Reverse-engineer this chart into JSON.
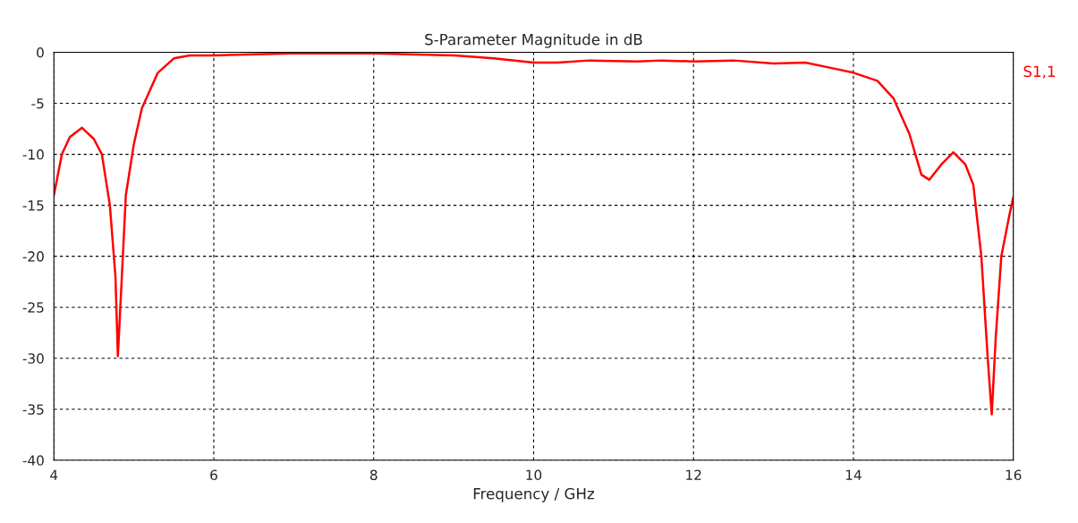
{
  "chart_data": {
    "type": "line",
    "title": "S-Parameter Magnitude in dB",
    "xlabel": "Frequency / GHz",
    "xlim": [
      4,
      16
    ],
    "xticks": [
      4,
      6,
      8,
      10,
      12,
      14,
      16
    ],
    "ylim": [
      -40,
      0
    ],
    "yticks": [
      -40,
      -35,
      -30,
      -25,
      -20,
      -15,
      -10,
      -5,
      0
    ],
    "grid": true,
    "legend": "right",
    "line_style": "solid",
    "series": [
      {
        "name": "S1,1",
        "color": "#ff0000",
        "x": [
          4.0,
          4.1,
          4.2,
          4.35,
          4.5,
          4.6,
          4.7,
          4.77,
          4.8,
          4.85,
          4.9,
          5.0,
          5.1,
          5.3,
          5.5,
          5.7,
          6.0,
          6.5,
          7.0,
          8.0,
          9.0,
          9.5,
          10.0,
          10.3,
          10.7,
          11.3,
          11.6,
          12.0,
          12.5,
          13.0,
          13.4,
          13.7,
          14.0,
          14.3,
          14.5,
          14.7,
          14.85,
          14.95,
          15.1,
          15.25,
          15.4,
          15.5,
          15.6,
          15.68,
          15.73,
          15.78,
          15.85,
          15.95,
          16.0
        ],
        "values": [
          -14,
          -10,
          -8.3,
          -7.4,
          -8.5,
          -10,
          -15,
          -22,
          -29.8,
          -22,
          -14,
          -9,
          -5.5,
          -2,
          -0.6,
          -0.3,
          -0.3,
          -0.2,
          -0.1,
          -0.1,
          -0.3,
          -0.6,
          -1.0,
          -1.0,
          -0.8,
          -0.9,
          -0.8,
          -0.9,
          -0.8,
          -1.1,
          -1.0,
          -1.5,
          -2.0,
          -2.8,
          -4.5,
          -8,
          -12,
          -12.5,
          -11,
          -9.8,
          -11,
          -13,
          -20,
          -30,
          -35.5,
          -28,
          -20,
          -16,
          -14.2
        ]
      }
    ]
  }
}
